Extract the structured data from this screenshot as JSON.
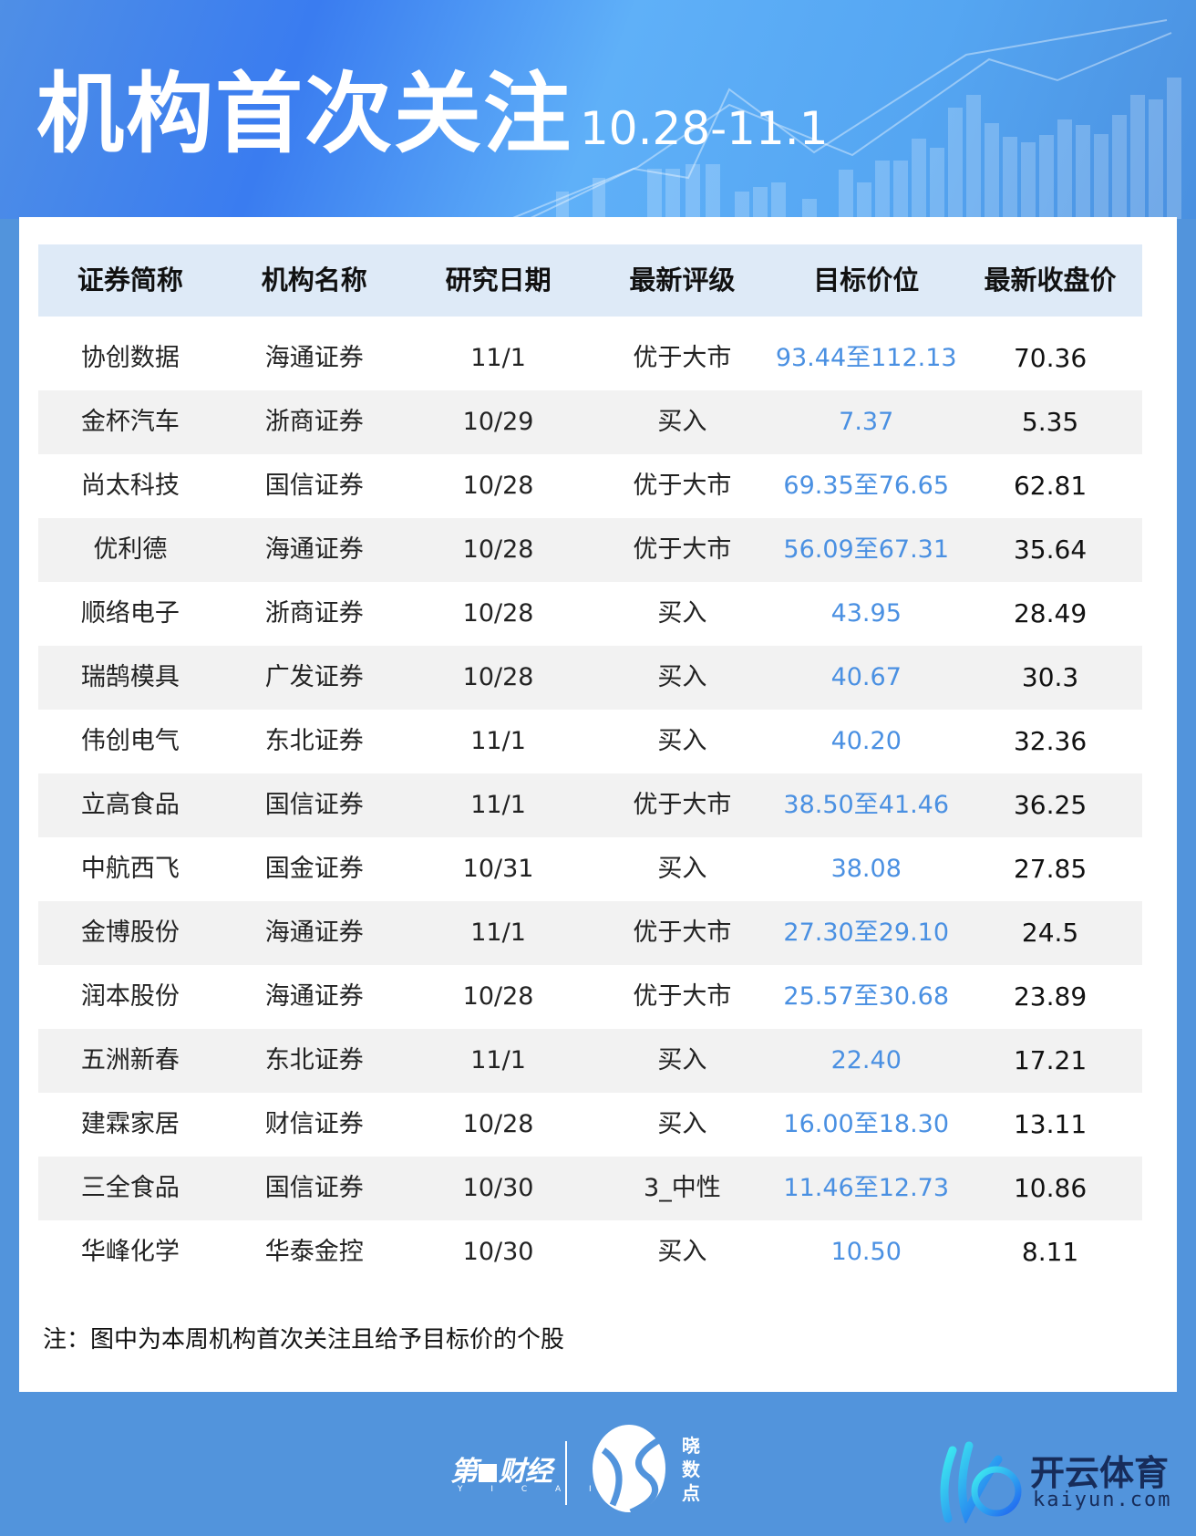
{
  "header": {
    "title": "机构首次关注",
    "date_range": "10.28-11.1"
  },
  "table": {
    "columns": [
      "证券简称",
      "机构名称",
      "研究日期",
      "最新评级",
      "目标价位",
      "最新收盘价"
    ],
    "rows": [
      [
        "协创数据",
        "海通证券",
        "11/1",
        "优于大市",
        "93.44至112.13",
        "70.36"
      ],
      [
        "金杯汽车",
        "浙商证券",
        "10/29",
        "买入",
        "7.37",
        "5.35"
      ],
      [
        "尚太科技",
        "国信证券",
        "10/28",
        "优于大市",
        "69.35至76.65",
        "62.81"
      ],
      [
        "优利德",
        "海通证券",
        "10/28",
        "优于大市",
        "56.09至67.31",
        "35.64"
      ],
      [
        "顺络电子",
        "浙商证券",
        "10/28",
        "买入",
        "43.95",
        "28.49"
      ],
      [
        "瑞鹄模具",
        "广发证券",
        "10/28",
        "买入",
        "40.67",
        "30.3"
      ],
      [
        "伟创电气",
        "东北证券",
        "11/1",
        "买入",
        "40.20",
        "32.36"
      ],
      [
        "立高食品",
        "国信证券",
        "11/1",
        "优于大市",
        "38.50至41.46",
        "36.25"
      ],
      [
        "中航西飞",
        "国金证券",
        "10/31",
        "买入",
        "38.08",
        "27.85"
      ],
      [
        "金博股份",
        "海通证券",
        "11/1",
        "优于大市",
        "27.30至29.10",
        "24.5"
      ],
      [
        "润本股份",
        "海通证券",
        "10/28",
        "优于大市",
        "25.57至30.68",
        "23.89"
      ],
      [
        "五洲新春",
        "东北证券",
        "11/1",
        "买入",
        "22.40",
        "17.21"
      ],
      [
        "建霖家居",
        "财信证券",
        "10/28",
        "买入",
        "16.00至18.30",
        "13.11"
      ],
      [
        "三全食品",
        "国信证券",
        "10/30",
        "3_中性",
        "11.46至12.73",
        "10.86"
      ],
      [
        "华峰化学",
        "华泰金控",
        "10/30",
        "买入",
        "10.50",
        "8.11"
      ]
    ]
  },
  "note": "注：图中为本周机构首次关注且给予目标价的个股",
  "footer": {
    "logo_yicai": "第一财经",
    "logo_yicai_sub": "YICAI",
    "logo_xiaoshudian": "晓数点",
    "logo_kaiyun": "开云体育",
    "logo_kaiyun_url": "kaiyun.com"
  },
  "colors": {
    "background": "#5294dc",
    "header_row": "#deeaf7",
    "stripe": "#f2f2f2",
    "target_price": "#4a90e2"
  }
}
